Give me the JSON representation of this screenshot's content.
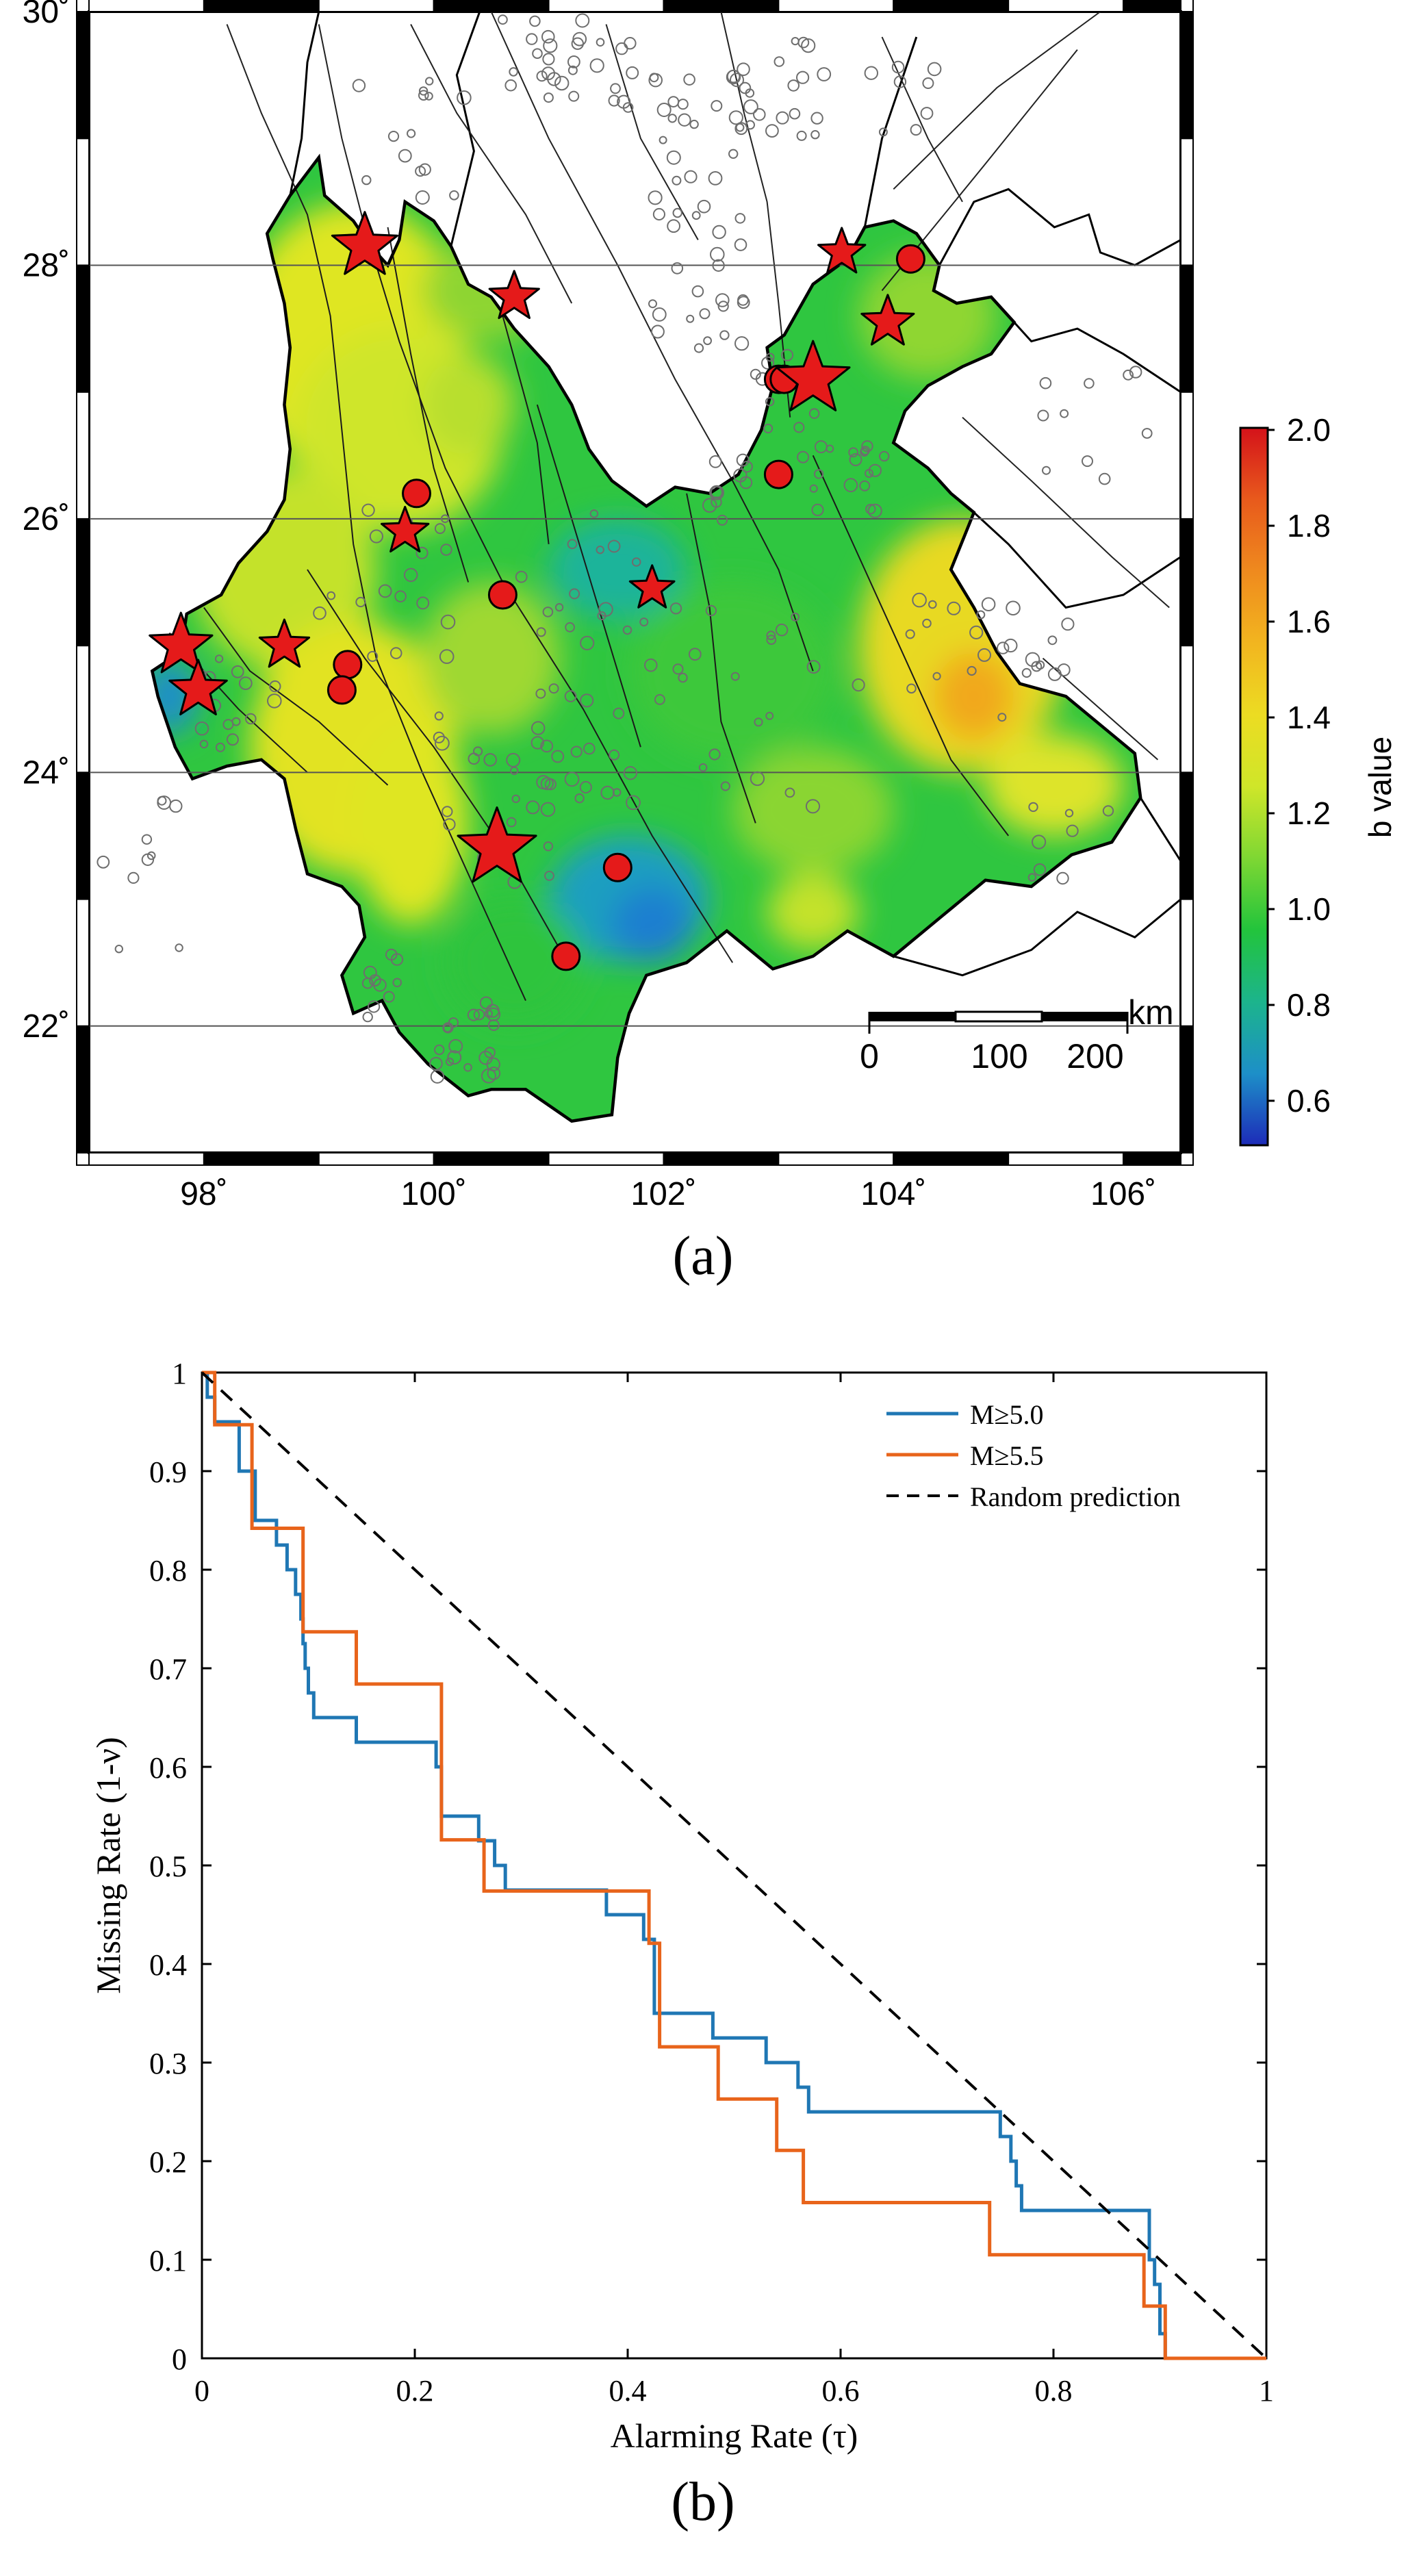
{
  "figure": {
    "panel_a_label": "(a)",
    "panel_b_label": "(b)"
  },
  "map": {
    "lat_labels": [
      "30˚",
      "28˚",
      "26˚",
      "24˚",
      "22˚"
    ],
    "lon_labels": [
      "98˚",
      "100˚",
      "102˚",
      "104˚",
      "106˚"
    ],
    "colorbar": {
      "title": "b value",
      "ticks": [
        "2.0",
        "1.8",
        "1.6",
        "1.4",
        "1.2",
        "1.0",
        "0.8",
        "0.6"
      ],
      "colors": [
        "#d4121a",
        "#e85a1c",
        "#ef8a1e",
        "#f2b51f",
        "#ecdc22",
        "#cfe629",
        "#7ed733",
        "#22c43c",
        "#1cb48c",
        "#1d8fc8",
        "#1d2bb8"
      ]
    },
    "scalebar": {
      "unit": "km",
      "labels": [
        "0",
        "100",
        "200"
      ]
    },
    "legend_symbols": {
      "star": "red-star-large-earthquake",
      "circle": "red-circle-earthquake",
      "small_circle": "gray-circle-seismicity"
    }
  },
  "chart_data": {
    "type": "line",
    "title": "",
    "xlabel": "Alarming Rate (τ)",
    "ylabel": "Missing Rate (1-ν)",
    "xlim": [
      0,
      1
    ],
    "ylim": [
      0,
      1
    ],
    "xticks": [
      "0",
      "0.2",
      "0.4",
      "0.6",
      "0.8",
      "1"
    ],
    "yticks": [
      "0",
      "0.1",
      "0.2",
      "0.3",
      "0.4",
      "0.5",
      "0.6",
      "0.7",
      "0.8",
      "0.9",
      "1"
    ],
    "legend_position": "top-right",
    "series": [
      {
        "name": "M≥5.0",
        "color": "#1f77b4",
        "style": "solid",
        "points": [
          [
            0,
            1
          ],
          [
            0.005,
            1
          ],
          [
            0.005,
            0.975
          ],
          [
            0.012,
            0.975
          ],
          [
            0.012,
            0.95
          ],
          [
            0.035,
            0.95
          ],
          [
            0.035,
            0.9
          ],
          [
            0.05,
            0.9
          ],
          [
            0.05,
            0.85
          ],
          [
            0.07,
            0.85
          ],
          [
            0.07,
            0.825
          ],
          [
            0.08,
            0.825
          ],
          [
            0.08,
            0.8
          ],
          [
            0.088,
            0.8
          ],
          [
            0.088,
            0.775
          ],
          [
            0.093,
            0.775
          ],
          [
            0.093,
            0.75
          ],
          [
            0.095,
            0.75
          ],
          [
            0.095,
            0.725
          ],
          [
            0.097,
            0.725
          ],
          [
            0.097,
            0.7
          ],
          [
            0.1,
            0.7
          ],
          [
            0.1,
            0.675
          ],
          [
            0.105,
            0.675
          ],
          [
            0.105,
            0.65
          ],
          [
            0.145,
            0.65
          ],
          [
            0.145,
            0.625
          ],
          [
            0.22,
            0.625
          ],
          [
            0.22,
            0.6
          ],
          [
            0.225,
            0.6
          ],
          [
            0.225,
            0.55
          ],
          [
            0.26,
            0.55
          ],
          [
            0.26,
            0.525
          ],
          [
            0.275,
            0.525
          ],
          [
            0.275,
            0.5
          ],
          [
            0.285,
            0.5
          ],
          [
            0.285,
            0.475
          ],
          [
            0.38,
            0.475
          ],
          [
            0.38,
            0.45
          ],
          [
            0.415,
            0.45
          ],
          [
            0.415,
            0.425
          ],
          [
            0.425,
            0.425
          ],
          [
            0.425,
            0.35
          ],
          [
            0.48,
            0.35
          ],
          [
            0.48,
            0.325
          ],
          [
            0.53,
            0.325
          ],
          [
            0.53,
            0.3
          ],
          [
            0.56,
            0.3
          ],
          [
            0.56,
            0.275
          ],
          [
            0.57,
            0.275
          ],
          [
            0.57,
            0.25
          ],
          [
            0.75,
            0.25
          ],
          [
            0.75,
            0.225
          ],
          [
            0.76,
            0.225
          ],
          [
            0.76,
            0.2
          ],
          [
            0.765,
            0.2
          ],
          [
            0.765,
            0.175
          ],
          [
            0.77,
            0.175
          ],
          [
            0.77,
            0.15
          ],
          [
            0.89,
            0.15
          ],
          [
            0.89,
            0.1
          ],
          [
            0.895,
            0.1
          ],
          [
            0.895,
            0.075
          ],
          [
            0.9,
            0.075
          ],
          [
            0.9,
            0.025
          ],
          [
            0.905,
            0.025
          ],
          [
            0.905,
            0
          ]
        ]
      },
      {
        "name": "M≥5.5",
        "color": "#e8641b",
        "style": "solid",
        "points": [
          [
            0,
            1
          ],
          [
            0.012,
            1
          ],
          [
            0.012,
            0.947
          ],
          [
            0.047,
            0.947
          ],
          [
            0.047,
            0.842
          ],
          [
            0.095,
            0.842
          ],
          [
            0.095,
            0.737
          ],
          [
            0.145,
            0.737
          ],
          [
            0.145,
            0.684
          ],
          [
            0.225,
            0.684
          ],
          [
            0.225,
            0.526
          ],
          [
            0.265,
            0.526
          ],
          [
            0.265,
            0.474
          ],
          [
            0.42,
            0.474
          ],
          [
            0.42,
            0.421
          ],
          [
            0.43,
            0.421
          ],
          [
            0.43,
            0.316
          ],
          [
            0.485,
            0.316
          ],
          [
            0.485,
            0.263
          ],
          [
            0.54,
            0.263
          ],
          [
            0.54,
            0.211
          ],
          [
            0.565,
            0.211
          ],
          [
            0.565,
            0.158
          ],
          [
            0.74,
            0.158
          ],
          [
            0.74,
            0.105
          ],
          [
            0.885,
            0.105
          ],
          [
            0.885,
            0.053
          ],
          [
            0.905,
            0.053
          ],
          [
            0.905,
            0
          ],
          [
            1,
            0
          ]
        ]
      },
      {
        "name": "Random prediction",
        "color": "#000000",
        "style": "dashed",
        "points": [
          [
            0,
            1
          ],
          [
            1,
            0
          ]
        ]
      }
    ]
  }
}
